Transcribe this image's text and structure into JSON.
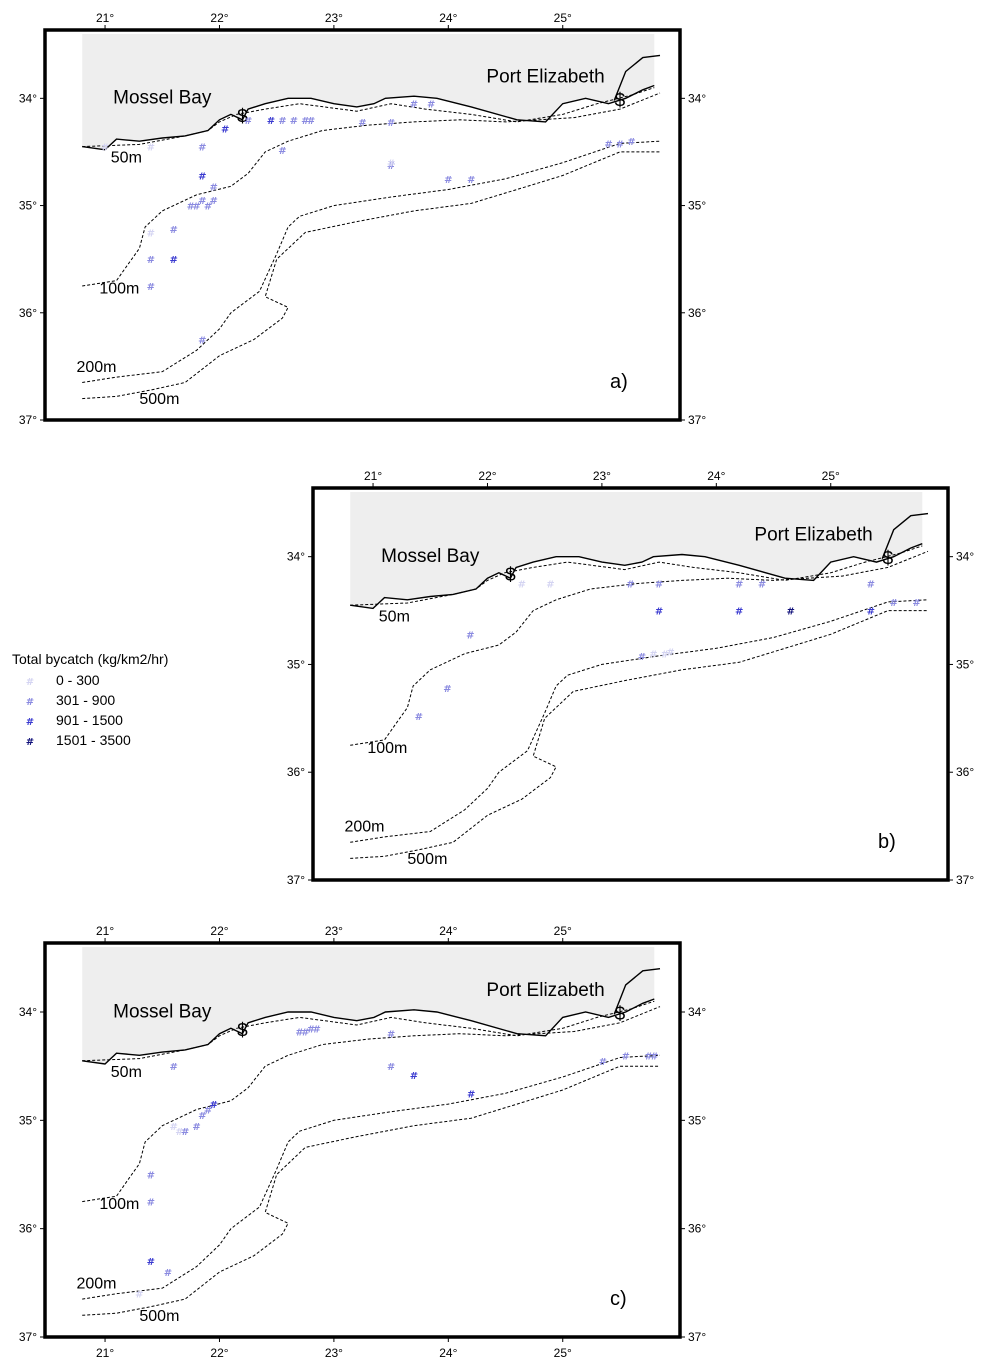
{
  "panels": [
    {
      "id": "a",
      "label": "a)",
      "frame": [
        45,
        30,
        680,
        420
      ],
      "ports": [
        "Mossel Bay",
        "Port Elizabeth"
      ],
      "port_symbol": "$",
      "depth_labels": [
        "50m",
        "100m",
        "200m",
        "500m"
      ],
      "points": [
        [
          21.0,
          34.45,
          0
        ],
        [
          21.4,
          34.45,
          0
        ],
        [
          21.85,
          34.45,
          1
        ],
        [
          21.85,
          34.72,
          2
        ],
        [
          21.95,
          34.82,
          1
        ],
        [
          21.85,
          34.95,
          1
        ],
        [
          21.8,
          35.0,
          1
        ],
        [
          21.75,
          35.0,
          1
        ],
        [
          21.9,
          35.0,
          1
        ],
        [
          21.95,
          34.95,
          1
        ],
        [
          21.4,
          35.25,
          0
        ],
        [
          21.6,
          35.22,
          1
        ],
        [
          21.4,
          35.5,
          1
        ],
        [
          21.6,
          35.5,
          2
        ],
        [
          21.4,
          35.75,
          1
        ],
        [
          21.85,
          36.25,
          1
        ],
        [
          22.05,
          34.28,
          2
        ],
        [
          22.25,
          34.2,
          1
        ],
        [
          22.45,
          34.2,
          2
        ],
        [
          22.55,
          34.2,
          1
        ],
        [
          22.65,
          34.2,
          1
        ],
        [
          22.75,
          34.2,
          1
        ],
        [
          22.8,
          34.2,
          1
        ],
        [
          22.55,
          34.48,
          1
        ],
        [
          23.25,
          34.22,
          1
        ],
        [
          23.5,
          34.22,
          1
        ],
        [
          23.7,
          34.05,
          1
        ],
        [
          23.85,
          34.05,
          1
        ],
        [
          23.5,
          34.62,
          1
        ],
        [
          23.5,
          34.6,
          0
        ],
        [
          24.0,
          34.75,
          1
        ],
        [
          24.2,
          34.75,
          1
        ],
        [
          25.4,
          34.42,
          1
        ],
        [
          25.5,
          34.42,
          1
        ],
        [
          25.6,
          34.4,
          1
        ]
      ]
    },
    {
      "id": "b",
      "label": "b)",
      "frame": [
        313,
        488,
        948,
        880
      ],
      "ports": [
        "Mossel Bay",
        "Port Elizabeth"
      ],
      "port_symbol": "$",
      "depth_labels": [
        "50m",
        "100m",
        "200m",
        "500m"
      ],
      "points": [
        [
          22.3,
          34.25,
          0
        ],
        [
          22.55,
          34.25,
          0
        ],
        [
          21.85,
          34.72,
          1
        ],
        [
          21.65,
          35.22,
          1
        ],
        [
          21.4,
          35.48,
          1
        ],
        [
          23.25,
          34.25,
          1
        ],
        [
          23.5,
          34.25,
          1
        ],
        [
          23.5,
          34.5,
          2
        ],
        [
          23.35,
          34.92,
          1
        ],
        [
          23.45,
          34.9,
          0
        ],
        [
          23.55,
          34.9,
          0
        ],
        [
          23.6,
          34.88,
          0
        ],
        [
          24.2,
          34.25,
          1
        ],
        [
          24.4,
          34.25,
          1
        ],
        [
          24.2,
          34.5,
          2
        ],
        [
          24.65,
          34.5,
          3
        ],
        [
          25.35,
          34.25,
          1
        ],
        [
          25.35,
          34.5,
          2
        ],
        [
          25.55,
          34.42,
          1
        ],
        [
          25.75,
          34.42,
          1
        ]
      ]
    },
    {
      "id": "c",
      "label": "c)",
      "frame": [
        45,
        943,
        680,
        1337
      ],
      "ports": [
        "Mossel Bay",
        "Port Elizabeth"
      ],
      "port_symbol": "$",
      "depth_labels": [
        "50m",
        "100m",
        "200m",
        "500m"
      ],
      "points": [
        [
          21.6,
          34.5,
          1
        ],
        [
          21.6,
          35.05,
          0
        ],
        [
          21.65,
          35.1,
          0
        ],
        [
          21.7,
          35.1,
          1
        ],
        [
          21.8,
          35.05,
          1
        ],
        [
          21.85,
          34.95,
          1
        ],
        [
          21.9,
          34.9,
          1
        ],
        [
          21.95,
          34.85,
          2
        ],
        [
          21.4,
          35.5,
          1
        ],
        [
          21.4,
          35.75,
          1
        ],
        [
          21.4,
          36.3,
          2
        ],
        [
          21.55,
          36.4,
          1
        ],
        [
          21.3,
          36.6,
          0
        ],
        [
          22.7,
          34.18,
          1
        ],
        [
          22.75,
          34.18,
          1
        ],
        [
          22.8,
          34.15,
          1
        ],
        [
          22.85,
          34.15,
          1
        ],
        [
          23.5,
          34.2,
          1
        ],
        [
          23.5,
          34.5,
          1
        ],
        [
          23.7,
          34.58,
          2
        ],
        [
          24.2,
          34.75,
          2
        ],
        [
          25.35,
          34.45,
          1
        ],
        [
          25.55,
          34.4,
          1
        ],
        [
          25.75,
          34.4,
          1
        ],
        [
          25.8,
          34.4,
          1
        ]
      ]
    }
  ],
  "axis": {
    "lon_ticks": [
      "21°",
      "22°",
      "23°",
      "24°",
      "25°"
    ],
    "lat_ticks": [
      "34°",
      "35°",
      "36°",
      "37°"
    ]
  },
  "legend": {
    "title": "Total bycatch (kg/km2/hr)",
    "items": [
      {
        "label": "0 - 300",
        "color": "#d4d4f2",
        "symbol": "#"
      },
      {
        "label": "301 - 900",
        "color": "#8a8ae0",
        "symbol": "#"
      },
      {
        "label": "901 - 1500",
        "color": "#3a3ad0",
        "symbol": "#"
      },
      {
        "label": "1501 - 3500",
        "color": "#10107a",
        "symbol": "#"
      }
    ]
  },
  "colors": {
    "land": "#eeeeee",
    "frame": "#000000"
  }
}
